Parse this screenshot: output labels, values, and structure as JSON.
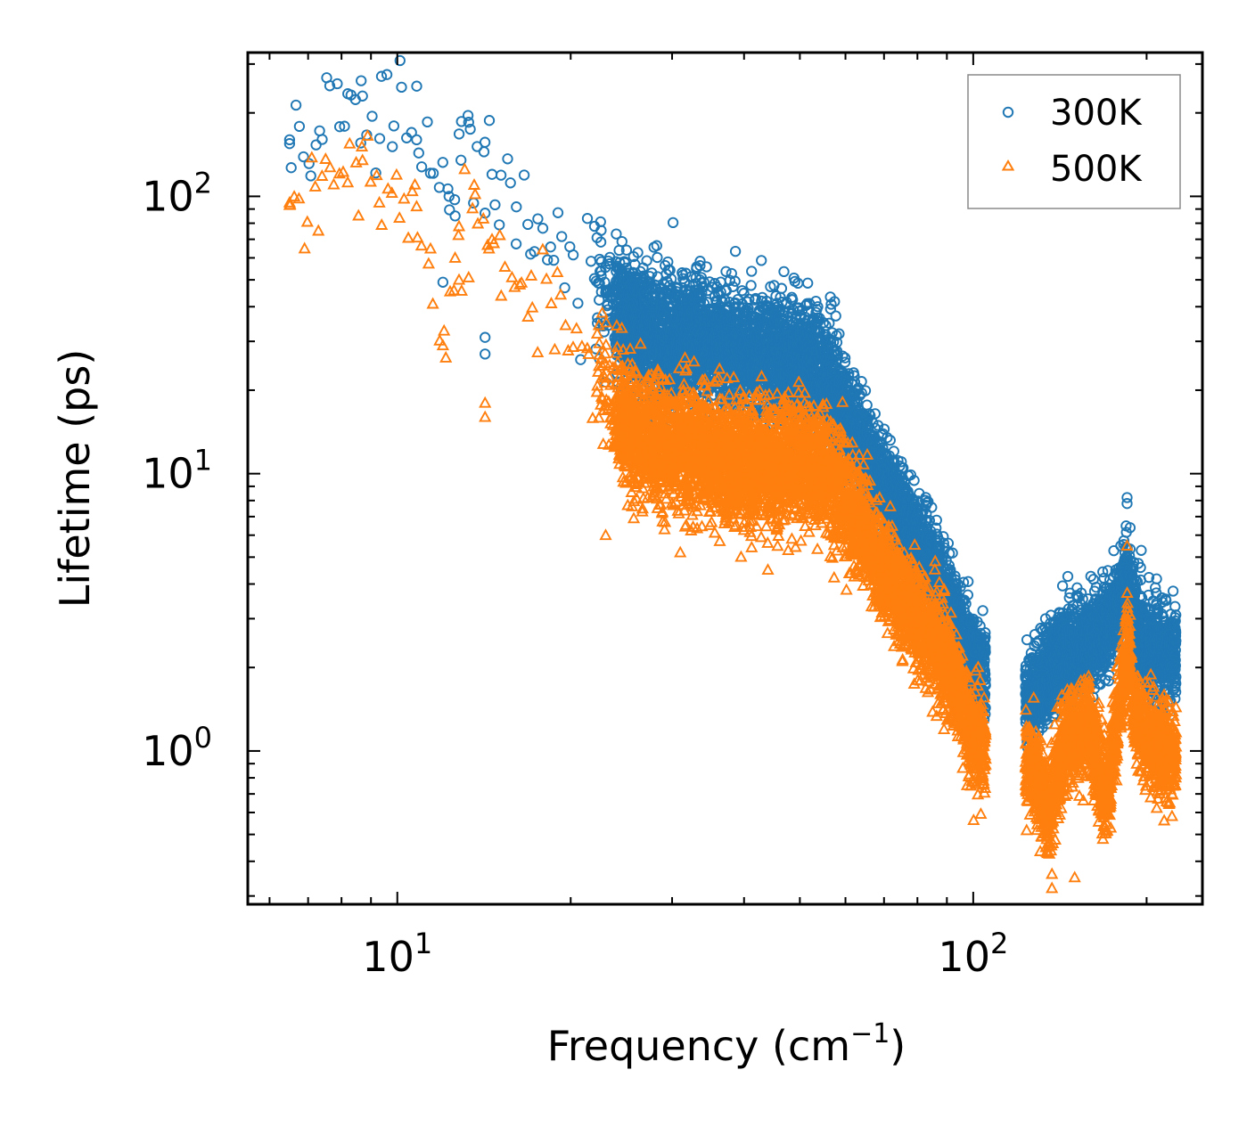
{
  "chart_data": {
    "type": "scatter",
    "title": "",
    "xlabel": "Frequency",
    "xlabel_unit": "(cm",
    "xlabel_unit_exp": "−1",
    "xlabel_unit_close": ")",
    "ylabel": "Lifetime (ps)",
    "xscale": "log",
    "yscale": "log",
    "xlim": [
      5.5,
      250
    ],
    "ylim": [
      0.28,
      330
    ],
    "x_major_ticks": [
      {
        "value": 10,
        "base": "10",
        "exp": "1"
      },
      {
        "value": 100,
        "base": "10",
        "exp": "2"
      }
    ],
    "y_major_ticks": [
      {
        "value": 1,
        "base": "10",
        "exp": "0"
      },
      {
        "value": 10,
        "base": "10",
        "exp": "1"
      },
      {
        "value": 100,
        "base": "10",
        "exp": "2"
      }
    ],
    "legend_position": "top-right",
    "series": [
      {
        "name": "300K",
        "marker": "circle",
        "color": "#1f77b4",
        "trend": [
          [
            6.5,
            160
          ],
          [
            8.7,
            230
          ],
          [
            10.8,
            160
          ],
          [
            12.3,
            100
          ],
          [
            13.3,
            180
          ],
          [
            14.6,
            120
          ],
          [
            17,
            70
          ],
          [
            20,
            62
          ],
          [
            22,
            52
          ],
          [
            24,
            40
          ],
          [
            26,
            34
          ],
          [
            28,
            31
          ],
          [
            30,
            30
          ],
          [
            33,
            30
          ],
          [
            36,
            28
          ],
          [
            40,
            27
          ],
          [
            45,
            26
          ],
          [
            50,
            25
          ],
          [
            55,
            22
          ],
          [
            60,
            16
          ],
          [
            65,
            12
          ],
          [
            70,
            9
          ],
          [
            75,
            7
          ],
          [
            80,
            5.5
          ],
          [
            85,
            4.5
          ],
          [
            90,
            3.4
          ],
          [
            95,
            2.6
          ],
          [
            100,
            2.1
          ],
          [
            103,
            1.9
          ],
          [
            125,
            1.5
          ],
          [
            135,
            1.9
          ],
          [
            145,
            2.3
          ],
          [
            160,
            2.5
          ],
          [
            175,
            3.0
          ],
          [
            185,
            4.2
          ],
          [
            190,
            3.0
          ],
          [
            200,
            2.4
          ],
          [
            215,
            2.3
          ],
          [
            225,
            2.2
          ]
        ],
        "outliers": [
          [
            8.7,
            230
          ],
          [
            13.3,
            185
          ],
          [
            14.6,
            120
          ],
          [
            10.8,
            160
          ],
          [
            6.5,
            160
          ],
          [
            6.5,
            155
          ],
          [
            12.9,
            135
          ],
          [
            12.3,
            100
          ],
          [
            12.6,
            85
          ],
          [
            14.2,
            87
          ],
          [
            22,
            78
          ],
          [
            25,
            64
          ],
          [
            29.5,
            58
          ],
          [
            38.5,
            41
          ],
          [
            185,
            8.2
          ],
          [
            185,
            7.8
          ],
          [
            130,
            2.5
          ],
          [
            12,
            49
          ],
          [
            14.2,
            31
          ],
          [
            14.2,
            27
          ]
        ]
      },
      {
        "name": "500K",
        "marker": "triangle",
        "color": "#ff7f0e",
        "trend": [
          [
            6.5,
            95
          ],
          [
            8.7,
            135
          ],
          [
            10.8,
            92
          ],
          [
            12,
            29
          ],
          [
            12.6,
            60
          ],
          [
            13.6,
            110
          ],
          [
            14.6,
            70
          ],
          [
            17,
            42
          ],
          [
            19,
            36
          ],
          [
            21,
            32
          ],
          [
            23,
            20
          ],
          [
            25,
            15
          ],
          [
            28,
            13
          ],
          [
            32,
            12
          ],
          [
            36,
            11.5
          ],
          [
            40,
            11
          ],
          [
            45,
            10.5
          ],
          [
            50,
            11
          ],
          [
            55,
            10
          ],
          [
            60,
            8
          ],
          [
            65,
            6
          ],
          [
            70,
            4.5
          ],
          [
            75,
            3.5
          ],
          [
            80,
            3.0
          ],
          [
            85,
            2.5
          ],
          [
            90,
            2.0
          ],
          [
            95,
            1.6
          ],
          [
            100,
            1.1
          ],
          [
            103,
            1.05
          ],
          [
            125,
            0.9
          ],
          [
            135,
            0.6
          ],
          [
            145,
            1.1
          ],
          [
            160,
            1.2
          ],
          [
            170,
            0.65
          ],
          [
            178,
            1.3
          ],
          [
            185,
            2.5
          ],
          [
            190,
            1.4
          ],
          [
            200,
            1.1
          ],
          [
            215,
            1.0
          ],
          [
            225,
            0.95
          ]
        ],
        "outliers": [
          [
            8.7,
            135
          ],
          [
            13.6,
            110
          ],
          [
            6.5,
            95
          ],
          [
            6.5,
            93
          ],
          [
            10.8,
            92
          ],
          [
            12.8,
            78
          ],
          [
            14.6,
            70
          ],
          [
            12.6,
            60
          ],
          [
            12.8,
            50
          ],
          [
            13.3,
            51
          ],
          [
            14.2,
            18
          ],
          [
            14.2,
            16
          ],
          [
            12,
            29
          ],
          [
            23,
            6
          ],
          [
            31,
            5.2
          ],
          [
            44,
            4.5
          ],
          [
            137,
            0.32
          ],
          [
            137,
            0.36
          ],
          [
            150,
            0.35
          ],
          [
            185,
            5.5
          ]
        ]
      }
    ]
  }
}
